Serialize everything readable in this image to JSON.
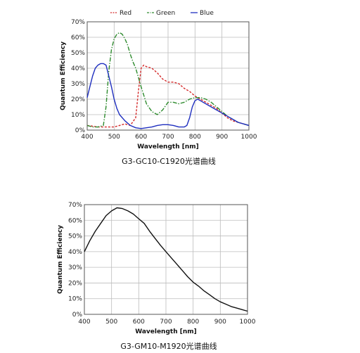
{
  "chart_data": [
    {
      "type": "line",
      "caption": "G3-GC10-C1920光谱曲线",
      "xlabel": "Wavelength [nm]",
      "ylabel": "Quantum Efficiency",
      "xlim": [
        400,
        1000
      ],
      "ylim": [
        0,
        70
      ],
      "xticks": [
        400,
        500,
        600,
        700,
        800,
        900,
        1000
      ],
      "yticks": [
        0,
        10,
        20,
        30,
        40,
        50,
        60,
        70
      ],
      "ytick_suffix": "%",
      "grid": true,
      "legend_position": "top",
      "series": [
        {
          "name": "Red",
          "color": "#d42a2a",
          "dash": "3,2",
          "x": [
            400,
            420,
            440,
            460,
            480,
            500,
            520,
            540,
            560,
            580,
            590,
            600,
            610,
            620,
            640,
            660,
            680,
            700,
            720,
            740,
            760,
            780,
            800,
            820,
            840,
            860,
            880,
            900,
            920,
            940,
            960,
            980,
            1000
          ],
          "y": [
            3,
            2.5,
            2,
            2,
            2,
            2,
            3,
            4,
            3,
            8,
            25,
            40,
            42,
            41,
            40,
            37,
            33,
            31,
            31,
            30,
            27,
            25,
            22,
            20,
            18,
            16,
            14,
            11,
            8,
            6,
            5,
            4,
            3
          ]
        },
        {
          "name": "Green",
          "color": "#2e8b2e",
          "dash": "6,2,1.5,2",
          "x": [
            400,
            420,
            440,
            460,
            470,
            480,
            490,
            500,
            510,
            520,
            530,
            540,
            550,
            560,
            570,
            580,
            600,
            620,
            640,
            660,
            680,
            700,
            720,
            740,
            760,
            780,
            800,
            820,
            840,
            860,
            880,
            900,
            920,
            940,
            960,
            980,
            1000
          ],
          "y": [
            3,
            2,
            2,
            3,
            15,
            38,
            52,
            59,
            62,
            63,
            62,
            59,
            55,
            49,
            44,
            40,
            28,
            17,
            12,
            10,
            13,
            18,
            18,
            17,
            18,
            20,
            21,
            21,
            20,
            18,
            15,
            12,
            9,
            7,
            5,
            4,
            3
          ]
        },
        {
          "name": "Blue",
          "color": "#1f2fbf",
          "dash": "",
          "x": [
            400,
            410,
            420,
            430,
            440,
            450,
            460,
            470,
            480,
            490,
            500,
            510,
            520,
            540,
            560,
            580,
            600,
            620,
            640,
            660,
            680,
            700,
            720,
            740,
            760,
            770,
            780,
            790,
            800,
            810,
            820,
            840,
            860,
            880,
            900,
            920,
            940,
            960,
            980,
            1000
          ],
          "y": [
            21,
            28,
            35,
            40,
            42,
            43,
            43,
            42,
            35,
            28,
            20,
            14,
            10,
            6,
            3,
            1.5,
            1,
            1.5,
            2,
            3,
            3.5,
            3.5,
            3,
            2,
            2,
            3,
            8,
            15,
            19,
            20,
            19,
            17,
            15,
            13,
            11,
            9,
            7,
            5,
            4,
            3
          ]
        }
      ]
    },
    {
      "type": "line",
      "caption": "G3-GM10-M1920光谱曲线",
      "xlabel": "Wavelength [nm]",
      "ylabel": "Quantum Efficiency",
      "xlim": [
        400,
        1000
      ],
      "ylim": [
        0,
        70
      ],
      "xticks": [
        400,
        500,
        600,
        700,
        800,
        900,
        1000
      ],
      "yticks": [
        0,
        10,
        20,
        30,
        40,
        50,
        60,
        70
      ],
      "ytick_suffix": "%",
      "grid": true,
      "series": [
        {
          "color": "#111111",
          "dash": "",
          "x": [
            400,
            420,
            440,
            460,
            480,
            500,
            520,
            540,
            560,
            580,
            600,
            620,
            640,
            660,
            680,
            700,
            720,
            740,
            760,
            780,
            800,
            820,
            840,
            860,
            880,
            900,
            920,
            940,
            960,
            980,
            1000
          ],
          "y": [
            40,
            47,
            53,
            58,
            63,
            66,
            68,
            67.5,
            66,
            64,
            61,
            58,
            53,
            48.5,
            44,
            40,
            36,
            32,
            28,
            24,
            20.5,
            18,
            15,
            12.5,
            10,
            8,
            6.5,
            5,
            4,
            3,
            2
          ]
        }
      ]
    }
  ]
}
